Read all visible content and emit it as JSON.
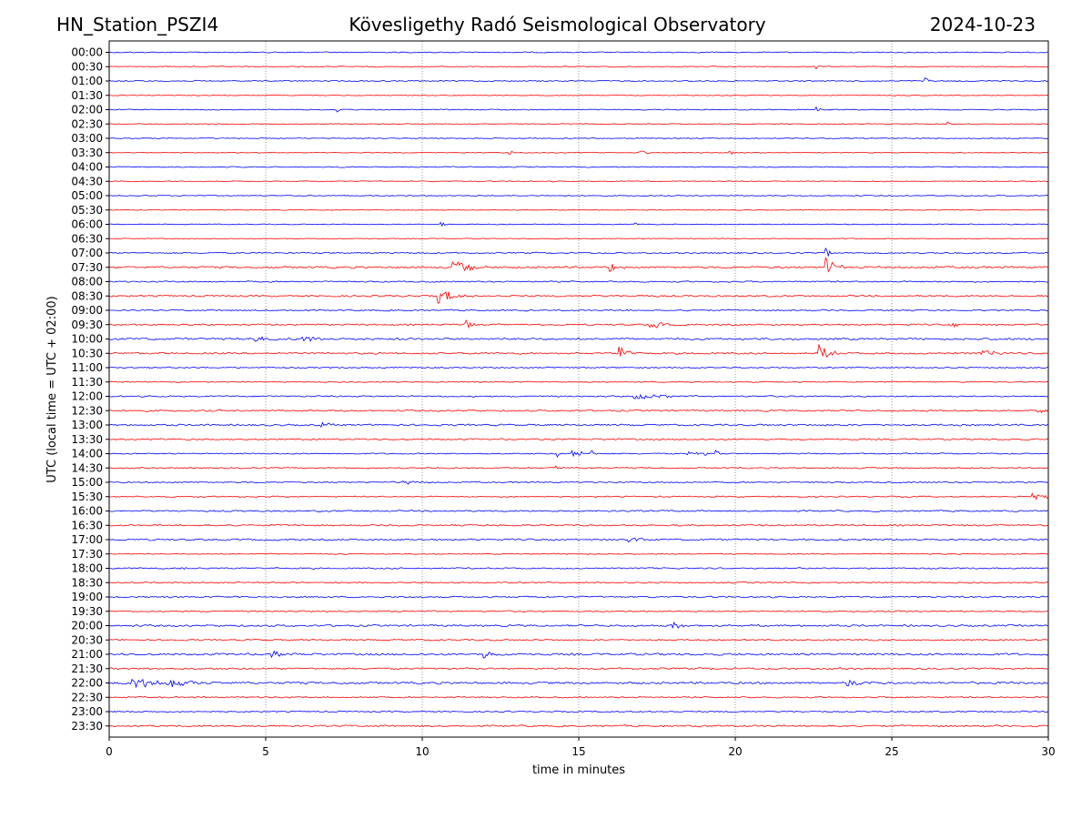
{
  "header": {
    "station": "HN_Station_PSZI4",
    "observatory": "Kövesligethy Radó Seismological Observatory",
    "date": "2024-10-23"
  },
  "chart_data": {
    "type": "line",
    "title": "Kövesligethy Radó Seismological Observatory",
    "xlabel": "time in minutes",
    "ylabel": "UTC (local time = UTC + 02:00)",
    "xlim": [
      0,
      30
    ],
    "x_ticks": [
      "0",
      "5",
      "10",
      "15",
      "20",
      "25",
      "30"
    ],
    "x_tick_values": [
      0,
      5,
      10,
      15,
      20,
      25,
      30
    ],
    "grid": "vertical dotted at x ticks",
    "colors": {
      "even": "#0000ff",
      "odd": "#ff0000"
    },
    "rows": [
      "00:00",
      "00:30",
      "01:00",
      "01:30",
      "02:00",
      "02:30",
      "03:00",
      "03:30",
      "04:00",
      "04:30",
      "05:00",
      "05:30",
      "06:00",
      "06:30",
      "07:00",
      "07:30",
      "08:00",
      "08:30",
      "09:00",
      "09:30",
      "10:00",
      "10:30",
      "11:00",
      "11:30",
      "12:00",
      "12:30",
      "13:00",
      "13:30",
      "14:00",
      "14:30",
      "15:00",
      "15:30",
      "16:00",
      "16:30",
      "17:00",
      "17:30",
      "18:00",
      "18:30",
      "19:00",
      "19:30",
      "20:00",
      "20:30",
      "21:00",
      "21:30",
      "22:00",
      "22:30",
      "23:00",
      "23:30"
    ],
    "noise_level": [
      0.6,
      0.6,
      0.7,
      0.5,
      0.6,
      0.5,
      0.5,
      0.5,
      0.6,
      0.5,
      0.6,
      0.4,
      0.5,
      0.5,
      0.8,
      1.2,
      0.8,
      1.0,
      0.8,
      0.9,
      1.2,
      1.0,
      0.8,
      0.6,
      0.8,
      1.0,
      1.0,
      0.9,
      0.7,
      0.8,
      0.8,
      0.7,
      0.9,
      0.9,
      1.0,
      0.6,
      0.8,
      0.8,
      0.9,
      0.8,
      1.1,
      0.9,
      1.2,
      1.0,
      1.3,
      0.8,
      0.8,
      1.0
    ],
    "events": [
      {
        "row": "00:30",
        "minute": 22.6,
        "amplitude": 4,
        "duration": 0.15
      },
      {
        "row": "01:00",
        "minute": 26.1,
        "amplitude": 4,
        "duration": 0.3
      },
      {
        "row": "02:00",
        "minute": 7.3,
        "amplitude": 4,
        "duration": 0.15
      },
      {
        "row": "02:00",
        "minute": 22.6,
        "amplitude": 3,
        "duration": 0.15
      },
      {
        "row": "02:30",
        "minute": 26.8,
        "amplitude": 2.5,
        "duration": 0.15
      },
      {
        "row": "03:30",
        "minute": 12.8,
        "amplitude": 2.5,
        "duration": 0.3
      },
      {
        "row": "03:30",
        "minute": 17.0,
        "amplitude": 2.5,
        "duration": 0.4
      },
      {
        "row": "03:30",
        "minute": 19.8,
        "amplitude": 3,
        "duration": 0.5
      },
      {
        "row": "06:00",
        "minute": 10.6,
        "amplitude": 4,
        "duration": 0.2
      },
      {
        "row": "06:00",
        "minute": 16.8,
        "amplitude": 2.5,
        "duration": 0.2
      },
      {
        "row": "07:00",
        "minute": 22.9,
        "amplitude": 5,
        "duration": 0.5
      },
      {
        "row": "07:30",
        "minute": 11.0,
        "amplitude": 9,
        "duration": 1.2
      },
      {
        "row": "07:30",
        "minute": 16.0,
        "amplitude": 5,
        "duration": 0.6
      },
      {
        "row": "07:30",
        "minute": 22.9,
        "amplitude": 11,
        "duration": 0.6
      },
      {
        "row": "08:30",
        "minute": 10.5,
        "amplitude": 8,
        "duration": 1.2
      },
      {
        "row": "09:30",
        "minute": 11.4,
        "amplitude": 8,
        "duration": 0.3
      },
      {
        "row": "09:30",
        "minute": 17.3,
        "amplitude": 4,
        "duration": 1.0
      },
      {
        "row": "09:30",
        "minute": 26.9,
        "amplitude": 3,
        "duration": 0.8
      },
      {
        "row": "10:00",
        "minute": 6.2,
        "amplitude": 4,
        "duration": 1.0
      },
      {
        "row": "10:00",
        "minute": 4.7,
        "amplitude": 3,
        "duration": 0.5
      },
      {
        "row": "10:30",
        "minute": 16.3,
        "amplitude": 9,
        "duration": 0.6
      },
      {
        "row": "10:30",
        "minute": 22.7,
        "amplitude": 10,
        "duration": 0.6
      },
      {
        "row": "10:30",
        "minute": 27.9,
        "amplitude": 3,
        "duration": 1.0
      },
      {
        "row": "12:00",
        "minute": 16.8,
        "amplitude": 4,
        "duration": 1.5
      },
      {
        "row": "12:30",
        "minute": 29.7,
        "amplitude": 3,
        "duration": 0.6
      },
      {
        "row": "13:00",
        "minute": 6.8,
        "amplitude": 3,
        "duration": 0.4
      },
      {
        "row": "14:00",
        "minute": 14.3,
        "amplitude": 5,
        "duration": 0.2
      },
      {
        "row": "14:00",
        "minute": 14.8,
        "amplitude": 5,
        "duration": 0.2
      },
      {
        "row": "14:00",
        "minute": 15.0,
        "amplitude": 8,
        "duration": 0.2
      },
      {
        "row": "14:00",
        "minute": 15.4,
        "amplitude": 10,
        "duration": 0.2
      },
      {
        "row": "14:00",
        "minute": 18.5,
        "amplitude": 3,
        "duration": 0.2
      },
      {
        "row": "14:00",
        "minute": 18.7,
        "amplitude": 4,
        "duration": 0.2
      },
      {
        "row": "14:00",
        "minute": 19.0,
        "amplitude": 5,
        "duration": 0.2
      },
      {
        "row": "14:00",
        "minute": 19.4,
        "amplitude": 5,
        "duration": 0.2
      },
      {
        "row": "14:30",
        "minute": 14.3,
        "amplitude": 3,
        "duration": 0.2
      },
      {
        "row": "15:00",
        "minute": 9.4,
        "amplitude": 2.5,
        "duration": 0.8
      },
      {
        "row": "15:30",
        "minute": 29.5,
        "amplitude": 3,
        "duration": 1.2
      },
      {
        "row": "17:00",
        "minute": 16.6,
        "amplitude": 3,
        "duration": 0.8
      },
      {
        "row": "18:00",
        "minute": 2.3,
        "amplitude": 2.5,
        "duration": 0.8
      },
      {
        "row": "20:00",
        "minute": 18.0,
        "amplitude": 5,
        "duration": 0.5
      },
      {
        "row": "21:00",
        "minute": 5.2,
        "amplitude": 4,
        "duration": 0.8
      },
      {
        "row": "21:00",
        "minute": 12.0,
        "amplitude": 4,
        "duration": 0.8
      },
      {
        "row": "22:00",
        "minute": 0.7,
        "amplitude": 8,
        "duration": 1.6
      },
      {
        "row": "22:00",
        "minute": 2.0,
        "amplitude": 5,
        "duration": 1.3
      },
      {
        "row": "22:00",
        "minute": 23.6,
        "amplitude": 4,
        "duration": 1.0
      }
    ]
  }
}
